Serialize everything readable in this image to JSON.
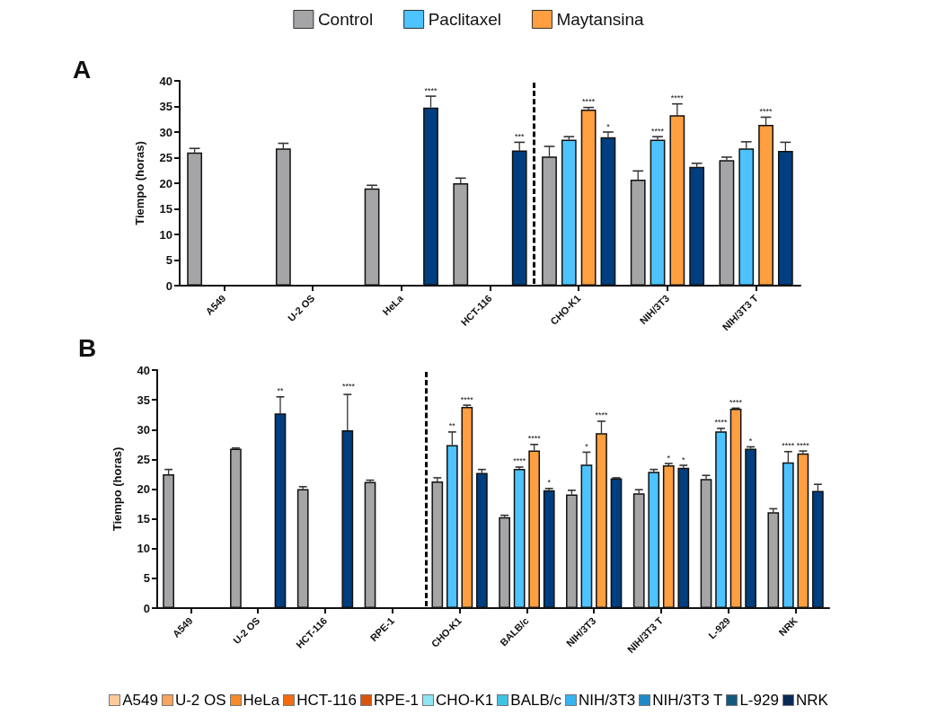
{
  "chart_data": [
    {
      "type": "bar",
      "title": "A",
      "ylabel": "Tiempo (horas)",
      "categories": [
        "A549",
        "U-2 OS",
        "HeLa",
        "HCT-116",
        "CHO-K1",
        "NIH/3T3",
        "NIH/3T3 T"
      ],
      "series": [
        {
          "name": "Control",
          "color": "#a5a5a8",
          "values": [
            26,
            26.8,
            19,
            20,
            25.2,
            20.7,
            24.5
          ],
          "errors": [
            0.8,
            1,
            0.6,
            1,
            2,
            1.7,
            0.6
          ],
          "value_labels": [
            null,
            null,
            null,
            null,
            null,
            null,
            null
          ]
        },
        {
          "name": "Paclitaxel",
          "color": "#4dc3ff",
          "values": [
            null,
            null,
            null,
            null,
            28.5,
            28.5,
            26.8
          ],
          "errors": [
            null,
            null,
            null,
            null,
            0.6,
            0.6,
            1.3
          ],
          "value_labels": [
            null,
            null,
            null,
            null,
            null,
            "****",
            null
          ]
        },
        {
          "name": "Maytansina",
          "color": "#ff9f40",
          "values": [
            null,
            null,
            null,
            null,
            34.4,
            33.3,
            31.4
          ],
          "errors": [
            null,
            null,
            null,
            null,
            0.4,
            2.2,
            1.5
          ],
          "value_labels": [
            null,
            null,
            null,
            null,
            "****",
            "****",
            "****"
          ]
        },
        {
          "color": "#003f7f",
          "values": [
            null,
            null,
            34.8,
            26.4,
            29,
            23.2,
            26.3
          ],
          "errors": [
            null,
            null,
            2.2,
            1.6,
            1,
            0.7,
            1.7
          ],
          "value_labels": [
            null,
            null,
            "****",
            "***",
            "*",
            null,
            null
          ]
        }
      ],
      "ylim": [
        0,
        40
      ],
      "yticks": [
        0,
        5,
        10,
        15,
        20,
        25,
        30,
        35,
        40
      ],
      "grid": false,
      "legend": "top"
    },
    {
      "type": "bar",
      "title": "B",
      "ylabel": "Tiempo (horas)",
      "categories": [
        "A549",
        "U-2 OS",
        "HCT-116",
        "RPE-1",
        "CHO-K1",
        "BALB/c",
        "NIH/3T3",
        "NIH/3T3 T",
        "L-929",
        "NRK"
      ],
      "series": [
        {
          "color": "#a5a5a8",
          "values": [
            22.5,
            26.8,
            20,
            21.2,
            21.3,
            15.3,
            19.1,
            19.3,
            21.7,
            16.1
          ],
          "errors": [
            0.8,
            0.1,
            0.4,
            0.3,
            0.6,
            0.3,
            0.7,
            0.6,
            0.6,
            0.6
          ],
          "value_labels": [
            null,
            null,
            null,
            null,
            null,
            null,
            null,
            null,
            null,
            null
          ]
        },
        {
          "color": "#4dc3ff",
          "values": [
            null,
            null,
            null,
            null,
            27.4,
            23.4,
            24.1,
            22.9,
            29.7,
            24.5
          ],
          "errors": [
            null,
            null,
            null,
            null,
            2.2,
            0.3,
            2.1,
            0.4,
            0.5,
            1.8
          ],
          "value_labels": [
            null,
            null,
            null,
            null,
            "**",
            "****",
            "*",
            null,
            "****",
            "****"
          ]
        },
        {
          "color": "#ff9f40",
          "values": [
            null,
            null,
            null,
            null,
            33.8,
            26.5,
            29.4,
            24,
            33.5,
            26
          ],
          "errors": [
            null,
            null,
            null,
            null,
            0.3,
            1,
            2,
            0.3,
            0.1,
            0.4
          ],
          "value_labels": [
            null,
            null,
            null,
            null,
            "****",
            "****",
            "****",
            "*",
            "****",
            "****"
          ]
        },
        {
          "color": "#003f7f",
          "values": [
            null,
            32.7,
            29.9,
            null,
            22.7,
            19.8,
            21.8,
            23.6,
            26.8,
            19.7
          ],
          "errors": [
            null,
            2.8,
            6,
            null,
            0.6,
            0.3,
            0.1,
            0.4,
            0.3,
            1.1
          ],
          "value_labels": [
            null,
            "**",
            null,
            null,
            null,
            "*",
            null,
            "*",
            "*",
            null
          ]
        }
      ],
      "ylim": [
        0,
        40
      ],
      "yticks": [
        0,
        5,
        10,
        15,
        20,
        25,
        30,
        35,
        40
      ],
      "grid": false,
      "legend": false,
      "annotations": [
        "****",
        "A549",
        "U-2 OS",
        "HeLa",
        "HCT-116",
        "RPE-1",
        "CHO-K1",
        "BALB/c",
        "NIH/3T3",
        "NIH/3T3 T",
        "L-929",
        "NRK"
      ]
    }
  ]
}
